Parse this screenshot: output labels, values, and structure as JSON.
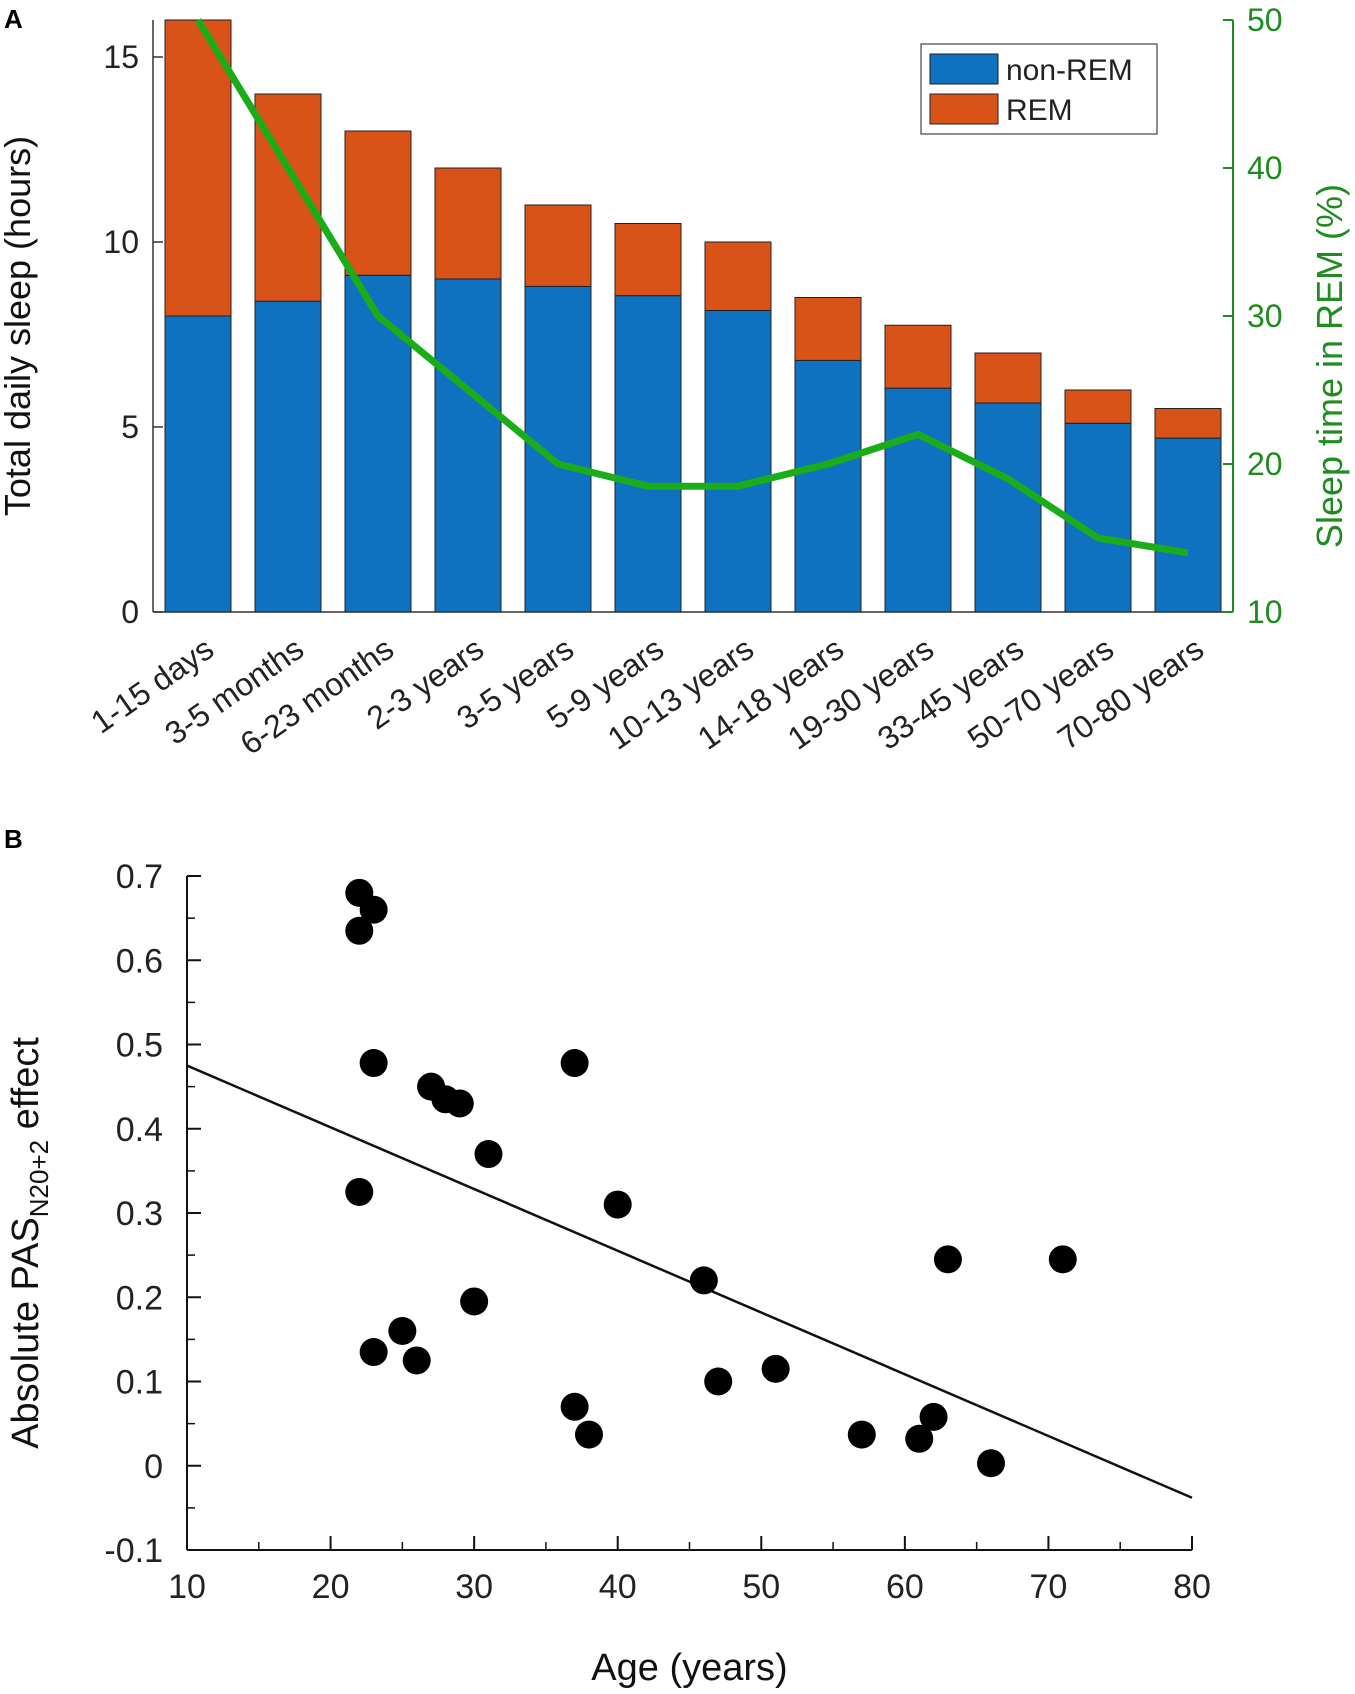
{
  "chart_data": [
    {
      "panel": "A",
      "type": "bar",
      "stacked": true,
      "categories": [
        "1-15 days",
        "3-5 months",
        "6-23 months",
        "2-3 years",
        "3-5 years",
        "5-9 years",
        "10-13 years",
        "14-18 years",
        "19-30 years",
        "33-45 years",
        "50-70 years",
        "70-80 years"
      ],
      "series": [
        {
          "name": "non-REM",
          "color": "#0E72C0",
          "values": [
            8.0,
            8.4,
            9.1,
            9.0,
            8.8,
            8.55,
            8.15,
            6.8,
            6.05,
            5.65,
            5.1,
            4.7
          ]
        },
        {
          "name": "REM",
          "color": "#D95319",
          "values": [
            8.0,
            5.6,
            3.9,
            3.0,
            2.2,
            1.95,
            1.85,
            1.7,
            1.7,
            1.35,
            0.9,
            0.8
          ]
        }
      ],
      "line_series": {
        "name": "Sleep time in REM (%)",
        "color": "#1AAD19",
        "axis": "right",
        "values": [
          50,
          40,
          30,
          25,
          20,
          18.5,
          18.5,
          20,
          22,
          19,
          15,
          14
        ]
      },
      "ylabel": "Total daily sleep (hours)",
      "ylabel_right": "Sleep time in REM (%)",
      "ylim": [
        0,
        16
      ],
      "ylim_right": [
        10,
        50
      ],
      "yticks": [
        "0",
        "5",
        "10",
        "15"
      ],
      "yticks_right": [
        "10",
        "20",
        "30",
        "40",
        "50"
      ],
      "legend": {
        "placement": "top-right",
        "entries": [
          "non-REM",
          "REM"
        ]
      }
    },
    {
      "panel": "B",
      "type": "scatter",
      "xlabel": "Age (years)",
      "ylabel_parts": {
        "main": "Absolute PAS",
        "sub": "N20+2",
        "suffix": " effect"
      },
      "xlim": [
        10,
        80
      ],
      "ylim": [
        -0.1,
        0.7
      ],
      "xticks": [
        "10",
        "20",
        "30",
        "40",
        "50",
        "60",
        "70",
        "80"
      ],
      "yticks": [
        "-0.1",
        "0",
        "0.1",
        "0.2",
        "0.3",
        "0.4",
        "0.5",
        "0.6",
        "0.7"
      ],
      "points": [
        {
          "x": 22,
          "y": 0.68
        },
        {
          "x": 23,
          "y": 0.66
        },
        {
          "x": 22,
          "y": 0.635
        },
        {
          "x": 23,
          "y": 0.478
        },
        {
          "x": 27,
          "y": 0.45
        },
        {
          "x": 28,
          "y": 0.435
        },
        {
          "x": 29,
          "y": 0.43
        },
        {
          "x": 31,
          "y": 0.37
        },
        {
          "x": 22,
          "y": 0.325
        },
        {
          "x": 37,
          "y": 0.478
        },
        {
          "x": 40,
          "y": 0.31
        },
        {
          "x": 46,
          "y": 0.22
        },
        {
          "x": 63,
          "y": 0.245
        },
        {
          "x": 71,
          "y": 0.245
        },
        {
          "x": 30,
          "y": 0.195
        },
        {
          "x": 25,
          "y": 0.16
        },
        {
          "x": 23,
          "y": 0.135
        },
        {
          "x": 26,
          "y": 0.125
        },
        {
          "x": 51,
          "y": 0.115
        },
        {
          "x": 47,
          "y": 0.1
        },
        {
          "x": 37,
          "y": 0.07
        },
        {
          "x": 62,
          "y": 0.058
        },
        {
          "x": 38,
          "y": 0.037
        },
        {
          "x": 57,
          "y": 0.037
        },
        {
          "x": 61,
          "y": 0.032
        },
        {
          "x": 66,
          "y": 0.003
        }
      ],
      "fit_line": {
        "x": [
          10,
          80
        ],
        "y": [
          0.475,
          -0.038
        ]
      }
    }
  ]
}
